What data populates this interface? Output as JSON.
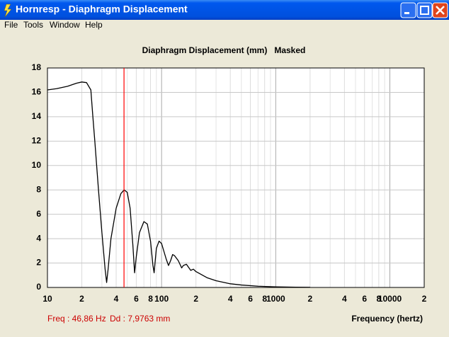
{
  "window": {
    "title": "Hornresp - Diaphragm Displacement"
  },
  "menu": [
    "File",
    "Tools",
    "Window",
    "Help"
  ],
  "chart_data": {
    "type": "line",
    "title": "Diaphragm Displacement (mm)   Masked",
    "x_label": "Frequency (hertz)",
    "x": [
      10,
      12,
      15,
      18,
      20,
      22,
      24,
      25,
      26,
      28,
      30,
      32,
      33,
      34,
      36,
      40,
      44,
      47,
      50,
      53,
      56,
      58,
      60,
      64,
      70,
      75,
      80,
      84,
      86,
      90,
      95,
      100,
      110,
      115,
      120,
      125,
      130,
      140,
      150,
      155,
      165,
      180,
      190,
      200,
      250,
      300,
      400,
      500,
      700,
      1000,
      1500,
      2000
    ],
    "values": [
      16.2,
      16.3,
      16.5,
      16.75,
      16.85,
      16.8,
      16.2,
      14,
      12,
      8,
      4.5,
      1.5,
      0.4,
      1.5,
      4,
      6.5,
      7.7,
      8.0,
      7.8,
      6.5,
      3.5,
      1.2,
      2.5,
      4.5,
      5.4,
      5.2,
      3.8,
      1.8,
      1.2,
      3.2,
      3.8,
      3.6,
      2.3,
      1.8,
      2.2,
      2.7,
      2.6,
      2.2,
      1.6,
      1.8,
      1.9,
      1.4,
      1.5,
      1.3,
      0.8,
      0.55,
      0.3,
      0.2,
      0.1,
      0.05,
      0.02,
      0.01
    ],
    "color": "#000000",
    "log_x": true,
    "grid": true,
    "xlim": [
      10,
      20000
    ],
    "ylim": [
      0,
      18
    ],
    "xticks": [
      10,
      {
        "value": 20,
        "label": "2"
      },
      {
        "value": 40,
        "label": "4"
      },
      {
        "value": 60,
        "label": "6"
      },
      {
        "value": 80,
        "label": "8"
      },
      100,
      {
        "value": 200,
        "label": "2"
      },
      {
        "value": 400,
        "label": "4"
      },
      {
        "value": 600,
        "label": "6"
      },
      {
        "value": 800,
        "label": "8"
      },
      1000,
      {
        "value": 2000,
        "label": "2"
      },
      {
        "value": 4000,
        "label": "4"
      },
      {
        "value": 6000,
        "label": "6"
      },
      {
        "value": 8000,
        "label": "8"
      },
      10000,
      {
        "value": 20000,
        "label": "2"
      }
    ],
    "xminorticks": [
      30,
      50,
      70,
      90,
      300,
      500,
      700,
      900,
      3000,
      5000,
      7000,
      9000
    ],
    "yticks": [
      0,
      2,
      4,
      6,
      8,
      10,
      12,
      14,
      16,
      18
    ],
    "cursor": {
      "x": 46.86,
      "color": "#ff0000"
    }
  },
  "status": {
    "freq": "Freq : 46,86 Hz",
    "dd": "Dd : 7,9763 mm"
  }
}
